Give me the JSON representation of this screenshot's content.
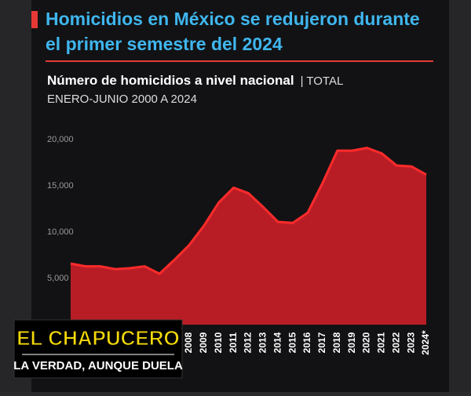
{
  "chart_data": {
    "type": "area",
    "title": "Homicidios en México se redujeron durante el primer semestre del 2024",
    "subtitle": "Número de homicidios a nivel nacional",
    "subtitle_suffix": "| TOTAL",
    "period": "ENERO-JUNIO 2000 A 2024",
    "categories": [
      null,
      null,
      null,
      null,
      null,
      null,
      null,
      null,
      "2008",
      "2009",
      "2010",
      "2011",
      "2012",
      "2013",
      "2014",
      "2015",
      "2016",
      "2017",
      "2018",
      "2019",
      "2020",
      "2021",
      "2022",
      "2023",
      "2024*"
    ],
    "values": [
      6600,
      6300,
      6300,
      6000,
      6100,
      6300,
      5500,
      7000,
      8600,
      10700,
      13200,
      14800,
      14200,
      12700,
      11100,
      11000,
      12100,
      15300,
      18800,
      18800,
      19100,
      18500,
      17200,
      17100,
      16200
    ],
    "color": "#b81d26",
    "line_color": "#ff2b2b",
    "ylim": [
      0,
      20000
    ],
    "yticks": [
      {
        "value": 5000,
        "label": "5,000"
      },
      {
        "value": 10000,
        "label": "10,000"
      },
      {
        "value": 15000,
        "label": "15,000"
      },
      {
        "value": 20000,
        "label": "20,000"
      }
    ],
    "grid": false
  },
  "logo": {
    "name": "EL CHAPUCERO",
    "slogan": "LA VERDAD, AUNQUE DUELA"
  }
}
